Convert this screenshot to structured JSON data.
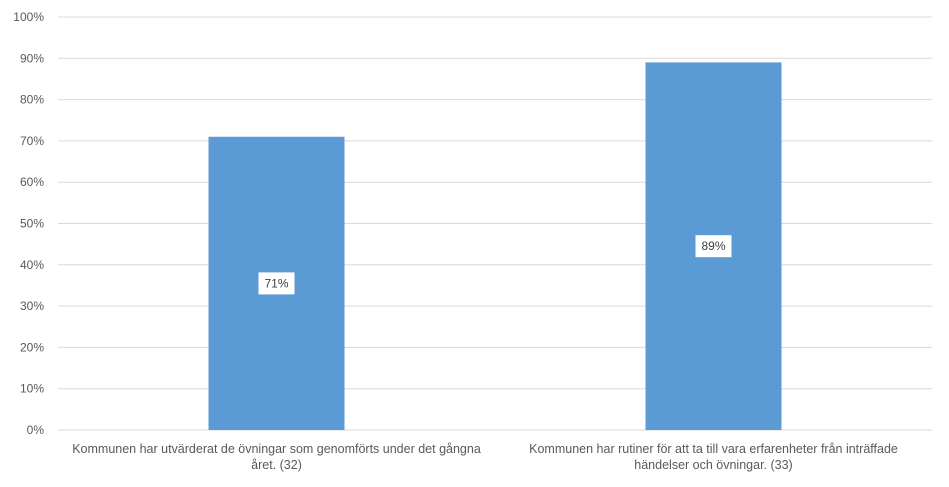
{
  "chart_data": {
    "type": "bar",
    "categories": [
      "Kommunen har utvärderat de övningar som genomförts under det gångna året. (32)",
      "Kommunen har rutiner för att ta till vara erfarenheter från inträffade händelser och övningar. (33)"
    ],
    "values": [
      71,
      89
    ],
    "data_labels": [
      "71%",
      "89%"
    ],
    "ylim": [
      0,
      100
    ],
    "yticks": [
      0,
      10,
      20,
      30,
      40,
      50,
      60,
      70,
      80,
      90,
      100
    ],
    "ytick_labels": [
      "0%",
      "10%",
      "20%",
      "30%",
      "40%",
      "50%",
      "60%",
      "70%",
      "80%",
      "90%",
      "100%"
    ],
    "grid": true,
    "title": "",
    "xlabel": "",
    "ylabel": "",
    "bar_color": "#5b9bd5",
    "grid_color": "#d9d9d9"
  }
}
